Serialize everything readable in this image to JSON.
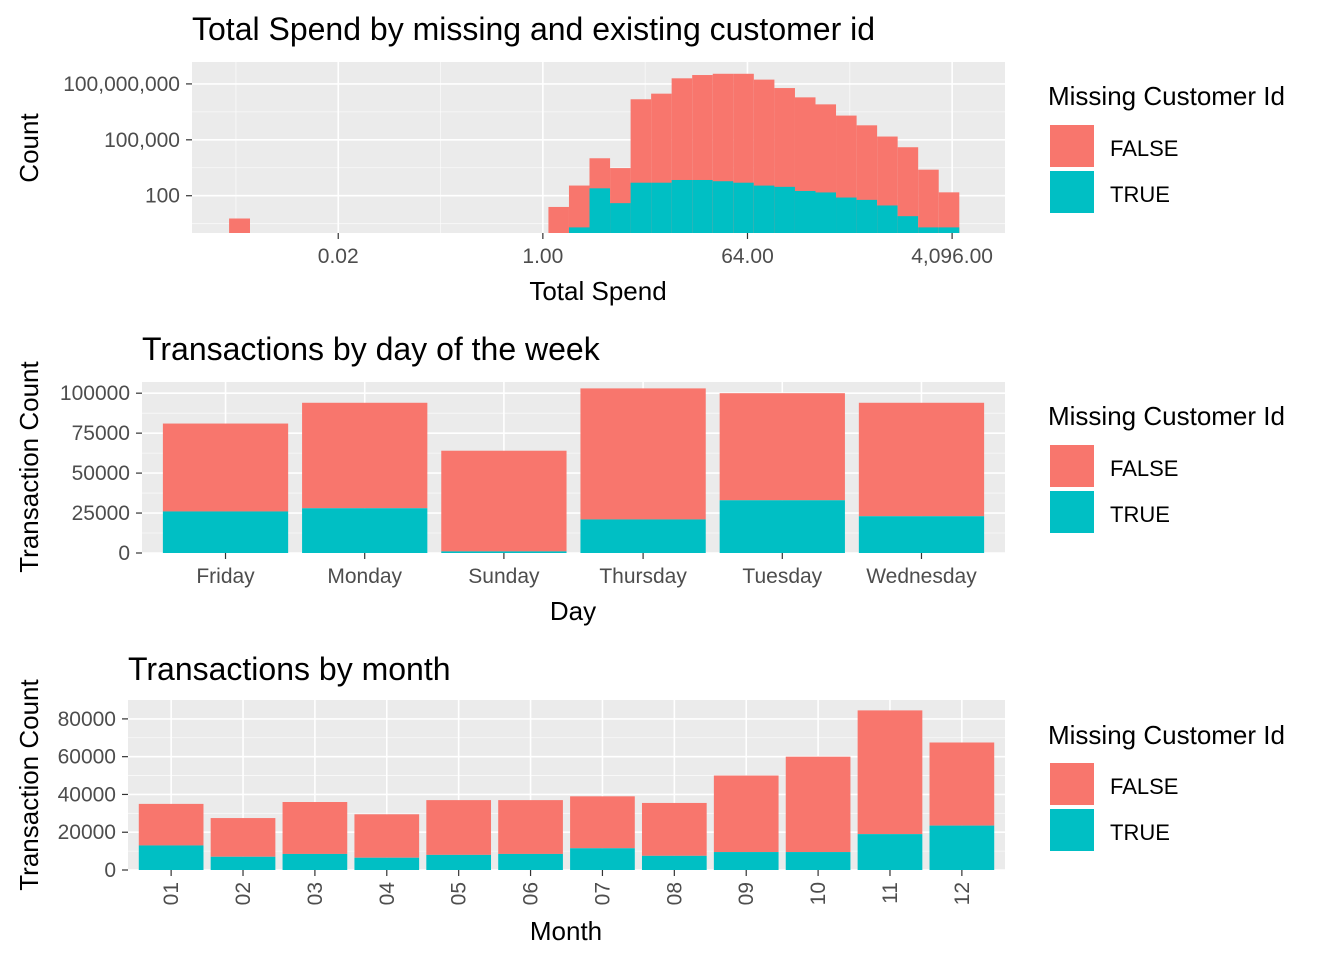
{
  "colors": {
    "false_fill": "#F8766D",
    "true_fill": "#00BFC4",
    "panel": "#EBEBEB",
    "grid_major": "#FFFFFF",
    "tick_text": "#4D4D4D"
  },
  "legend": {
    "title": "Missing Customer Id",
    "labels": [
      "FALSE",
      "TRUE"
    ]
  },
  "chart_data": [
    {
      "type": "bar",
      "title": "Total Spend by missing and existing customer id",
      "xlabel": "Total Spend",
      "ylabel": "Count",
      "x_scale": "log2",
      "y_scale": "log10",
      "x_ticks": [
        0.015625,
        1,
        64,
        4096
      ],
      "x_tick_labels": [
        "0.02",
        "1.00",
        "64.00",
        "4,096.00"
      ],
      "y_ticks": [
        100,
        100000,
        100000000
      ],
      "y_tick_labels": [
        "100",
        "100,000",
        "100,000,000"
      ],
      "xlim": [
        0.0008,
        12000
      ],
      "ylim": [
        1,
        1500000000
      ],
      "bin_edges": [
        0.0017,
        0.0026,
        0.14,
        0.21,
        0.32,
        0.49,
        0.74,
        1.12,
        1.7,
        2.58,
        3.92,
        5.95,
        9.03,
        13.7,
        20.8,
        31.6,
        48,
        72.8,
        110.6,
        168,
        255,
        387,
        588,
        892,
        1354,
        2055,
        3120,
        4740
      ],
      "series": [
        {
          "name": "FALSE",
          "values": [
            6,
            0,
            0,
            0,
            0,
            0,
            0,
            25,
            350,
            10000,
            3000,
            15000000,
            30000000,
            200000000,
            300000000,
            350000000,
            350000000,
            170000000,
            60000000,
            19000000,
            8000000,
            2000000,
            600000,
            150000,
            40000,
            2500,
            150
          ]
        },
        {
          "name": "TRUE",
          "values": [
            0,
            0,
            0,
            0,
            0,
            0,
            0,
            0,
            2,
            250,
            40,
            500,
            500,
            700,
            700,
            600,
            500,
            350,
            300,
            180,
            150,
            80,
            60,
            30,
            8,
            2,
            2
          ]
        }
      ]
    },
    {
      "type": "bar",
      "title": "Transactions by day of the week",
      "xlabel": "Day",
      "ylabel": "Transaction Count",
      "categories": [
        "Friday",
        "Monday",
        "Sunday",
        "Thursday",
        "Tuesday",
        "Wednesday"
      ],
      "y_ticks": [
        0,
        25000,
        50000,
        75000,
        100000
      ],
      "ylim": [
        0,
        107000
      ],
      "series": [
        {
          "name": "FALSE",
          "values": [
            55000,
            66000,
            63000,
            82000,
            67000,
            71000
          ]
        },
        {
          "name": "TRUE",
          "values": [
            26000,
            28000,
            1000,
            21000,
            33000,
            23000
          ]
        }
      ]
    },
    {
      "type": "bar",
      "title": "Transactions by month",
      "xlabel": "Month",
      "ylabel": "Transaction Count",
      "categories": [
        "01",
        "02",
        "03",
        "04",
        "05",
        "06",
        "07",
        "08",
        "09",
        "10",
        "11",
        "12"
      ],
      "y_ticks": [
        0,
        20000,
        40000,
        60000,
        80000
      ],
      "ylim": [
        0,
        90000
      ],
      "series": [
        {
          "name": "FALSE",
          "values": [
            22000,
            20500,
            27500,
            23000,
            29000,
            28500,
            27500,
            28000,
            40500,
            50500,
            65500,
            44000
          ]
        },
        {
          "name": "TRUE",
          "values": [
            13000,
            7000,
            8500,
            6500,
            8000,
            8500,
            11500,
            7500,
            9500,
            9500,
            19000,
            23500
          ]
        }
      ]
    }
  ]
}
